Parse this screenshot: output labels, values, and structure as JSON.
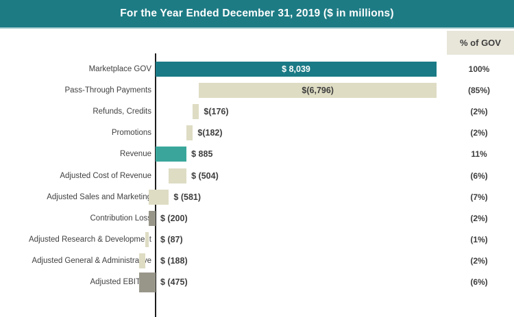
{
  "header": {
    "title": "For the Year Ended December 31, 2019 ($ in millions)",
    "percent_column_label": "% of GOV"
  },
  "colors": {
    "header_bg": "#1d7b84",
    "teal_dark": "#1a7a85",
    "teal_light": "#3aa69b",
    "beige": "#dedcc3",
    "gray": "#989689",
    "percent_box_bg": "#e8e6d9",
    "axis": "#1c1c1c",
    "bar_label_light": "#ffffff",
    "bar_label_dark": "#3d3d3d"
  },
  "chart_data": {
    "type": "bar",
    "subtype": "waterfall-horizontal",
    "title": "For the Year Ended December 31, 2019 ($ in millions)",
    "percent_column_header": "% of GOV",
    "xlim": [
      -475,
      8039
    ],
    "baseline_value": 0,
    "grid": false,
    "rows": [
      {
        "label": "Marketplace GOV",
        "value": 8039,
        "kind": "total",
        "display": "$ 8,039",
        "pct": "100%",
        "color": "teal_dark",
        "value_label_position": "inside"
      },
      {
        "label": "Pass-Through Payments",
        "value": -6796,
        "kind": "delta",
        "display": "$(6,796)",
        "pct": "(85%)",
        "color": "beige",
        "value_label_position": "inside"
      },
      {
        "label": "Refunds, Credits",
        "value": -176,
        "kind": "delta",
        "display": "$(176)",
        "pct": "(2%)",
        "color": "beige",
        "value_label_position": "right"
      },
      {
        "label": "Promotions",
        "value": -182,
        "kind": "delta",
        "display": "$(182)",
        "pct": "(2%)",
        "color": "beige",
        "value_label_position": "right"
      },
      {
        "label": "Revenue",
        "value": 885,
        "kind": "total",
        "display": "$ 885",
        "pct": "11%",
        "color": "teal_light",
        "value_label_position": "right"
      },
      {
        "label": "Adjusted Cost of Revenue",
        "value": -504,
        "kind": "delta",
        "display": "$ (504)",
        "pct": "(6%)",
        "color": "beige",
        "value_label_position": "right"
      },
      {
        "label": "Adjusted Sales and Marketing",
        "value": -581,
        "kind": "delta",
        "display": "$ (581)",
        "pct": "(7%)",
        "color": "beige",
        "value_label_position": "right"
      },
      {
        "label": "Contribution Loss",
        "value": -200,
        "kind": "total",
        "display": "$ (200)",
        "pct": "(2%)",
        "color": "gray",
        "value_label_position": "right"
      },
      {
        "label": "Adjusted Research & Development",
        "value": -87,
        "kind": "delta",
        "display": "$ (87)",
        "pct": "(1%)",
        "color": "beige",
        "value_label_position": "right"
      },
      {
        "label": "Adjusted General & Administrative",
        "value": -188,
        "kind": "delta",
        "display": "$ (188)",
        "pct": "(2%)",
        "color": "beige",
        "value_label_position": "right"
      },
      {
        "label": "Adjusted EBITDA",
        "value": -475,
        "kind": "total",
        "display": "$ (475)",
        "pct": "(6%)",
        "color": "gray",
        "value_label_position": "right"
      }
    ]
  }
}
